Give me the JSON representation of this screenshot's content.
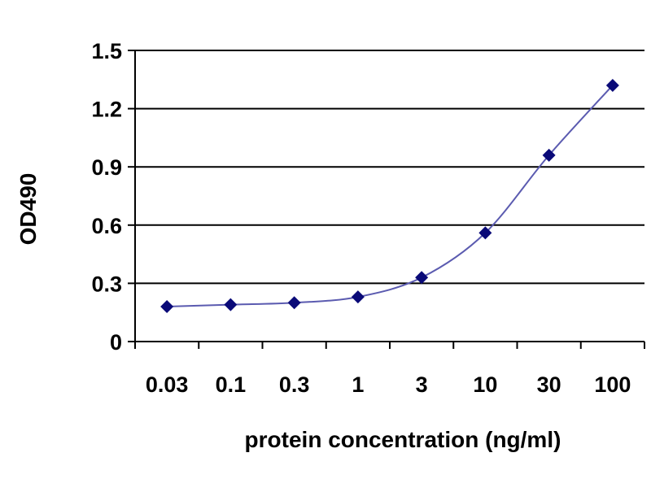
{
  "chart_data": {
    "type": "line",
    "title": "",
    "xlabel": "protein concentration (ng/ml)",
    "ylabel": "OD490",
    "x_categories": [
      "0.03",
      "0.1",
      "0.3",
      "1",
      "3",
      "10",
      "30",
      "100"
    ],
    "series": [
      {
        "values": [
          0.18,
          0.19,
          0.2,
          0.23,
          0.33,
          0.56,
          0.96,
          1.32
        ]
      }
    ],
    "y_ticks": [
      "0",
      "0.3",
      "0.6",
      "0.9",
      "1.2",
      "1.5"
    ],
    "ylim": [
      0,
      1.5
    ],
    "grid": "horizontal",
    "legend": "none",
    "colors": {
      "line": "#5b5bb0",
      "marker": "#0a0a78",
      "grid": "#000000",
      "axis": "#000000"
    },
    "marker": "diamond"
  }
}
